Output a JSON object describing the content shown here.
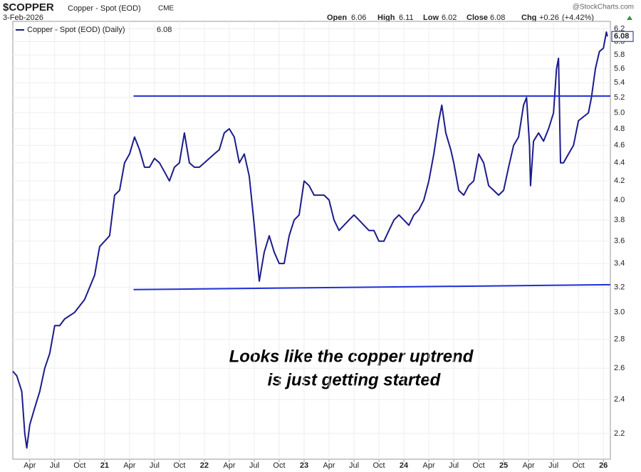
{
  "chart_data": {
    "type": "line",
    "symbol": "$COPPER",
    "title": "Copper - Spot (EOD)",
    "exchange": "CME",
    "date": "3-Feb-2026",
    "source": "@StockCharts.com",
    "quote": {
      "open_label": "Open",
      "open": 6.06,
      "high_label": "High",
      "high": 6.11,
      "low_label": "Low",
      "low": 6.02,
      "close_label": "Close",
      "close": 6.08,
      "chg_label": "Chg",
      "chg": "+0.26",
      "chg_pct": "(+4.42%)"
    },
    "annotation": [
      "Looks like the copper uptrend",
      "is just getting started"
    ],
    "log_scale": true,
    "grid": true,
    "legend": "top-left",
    "xlim": [
      2020.08,
      2026.07
    ],
    "ylim": [
      2.06,
      6.32
    ],
    "xticks": [
      {
        "value": 2020.25,
        "label": "Apr"
      },
      {
        "value": 2020.5,
        "label": "Jul"
      },
      {
        "value": 2020.75,
        "label": "Oct"
      },
      {
        "value": 2021,
        "label": "21"
      },
      {
        "value": 2021.25,
        "label": "Apr"
      },
      {
        "value": 2021.5,
        "label": "Jul"
      },
      {
        "value": 2021.75,
        "label": "Oct"
      },
      {
        "value": 2022,
        "label": "22"
      },
      {
        "value": 2022.25,
        "label": "Apr"
      },
      {
        "value": 2022.5,
        "label": "Jul"
      },
      {
        "value": 2022.75,
        "label": "Oct"
      },
      {
        "value": 2023,
        "label": "23"
      },
      {
        "value": 2023.25,
        "label": "Apr"
      },
      {
        "value": 2023.5,
        "label": "Jul"
      },
      {
        "value": 2023.75,
        "label": "Oct"
      },
      {
        "value": 2024,
        "label": "24"
      },
      {
        "value": 2024.25,
        "label": "Apr"
      },
      {
        "value": 2024.5,
        "label": "Jul"
      },
      {
        "value": 2024.75,
        "label": "Oct"
      },
      {
        "value": 2025,
        "label": "25"
      },
      {
        "value": 2025.25,
        "label": "Apr"
      },
      {
        "value": 2025.5,
        "label": "Jul"
      },
      {
        "value": 2025.75,
        "label": "Oct"
      },
      {
        "value": 2026,
        "label": "26"
      }
    ],
    "yticks": [
      2.2,
      2.4,
      2.6,
      2.8,
      {
        "value": 3,
        "label": "3.0"
      },
      3.2,
      3.4,
      3.6,
      3.8,
      {
        "value": 4,
        "label": "4.0"
      },
      4.2,
      4.4,
      4.6,
      4.8,
      {
        "value": 5,
        "label": "5.0"
      },
      5.2,
      5.4,
      5.6,
      5.8,
      {
        "value": 6,
        "label": "6.0"
      },
      6.2
    ],
    "series": [
      {
        "name": "Copper - Spot (EOD) (Daily)",
        "color": "#1c1c8c",
        "x": [
          2020.08,
          2020.12,
          2020.17,
          2020.2,
          2020.22,
          2020.25,
          2020.3,
          2020.35,
          2020.4,
          2020.45,
          2020.5,
          2020.55,
          2020.6,
          2020.7,
          2020.8,
          2020.9,
          2020.95,
          2021.0,
          2021.05,
          2021.1,
          2021.15,
          2021.2,
          2021.25,
          2021.3,
          2021.35,
          2021.4,
          2021.45,
          2021.5,
          2021.55,
          2021.6,
          2021.65,
          2021.7,
          2021.75,
          2021.8,
          2021.85,
          2021.9,
          2021.95,
          2022.0,
          2022.05,
          2022.1,
          2022.15,
          2022.2,
          2022.25,
          2022.3,
          2022.35,
          2022.4,
          2022.45,
          2022.5,
          2022.55,
          2022.6,
          2022.65,
          2022.7,
          2022.75,
          2022.8,
          2022.85,
          2022.9,
          2022.95,
          2023.0,
          2023.05,
          2023.1,
          2023.15,
          2023.2,
          2023.25,
          2023.3,
          2023.35,
          2023.4,
          2023.45,
          2023.5,
          2023.55,
          2023.6,
          2023.65,
          2023.7,
          2023.75,
          2023.8,
          2023.85,
          2023.9,
          2023.95,
          2024.0,
          2024.05,
          2024.1,
          2024.15,
          2024.2,
          2024.25,
          2024.3,
          2024.35,
          2024.38,
          2024.42,
          2024.47,
          2024.5,
          2024.55,
          2024.6,
          2024.65,
          2024.7,
          2024.75,
          2024.8,
          2024.85,
          2024.9,
          2024.95,
          2025.0,
          2025.05,
          2025.1,
          2025.15,
          2025.2,
          2025.23,
          2025.26,
          2025.27,
          2025.3,
          2025.35,
          2025.4,
          2025.45,
          2025.5,
          2025.53,
          2025.55,
          2025.57,
          2025.6,
          2025.65,
          2025.7,
          2025.75,
          2025.8,
          2025.85,
          2025.88,
          2025.92,
          2025.96,
          2026.0,
          2026.03,
          2026.04
        ],
        "values": [
          2.58,
          2.55,
          2.45,
          2.2,
          2.12,
          2.25,
          2.35,
          2.45,
          2.6,
          2.7,
          2.9,
          2.9,
          2.95,
          3.0,
          3.1,
          3.3,
          3.55,
          3.6,
          3.65,
          4.05,
          4.1,
          4.4,
          4.5,
          4.7,
          4.55,
          4.35,
          4.35,
          4.45,
          4.4,
          4.3,
          4.2,
          4.35,
          4.4,
          4.75,
          4.4,
          4.35,
          4.35,
          4.4,
          4.45,
          4.5,
          4.55,
          4.75,
          4.8,
          4.7,
          4.4,
          4.5,
          4.25,
          3.75,
          3.25,
          3.5,
          3.65,
          3.5,
          3.4,
          3.4,
          3.65,
          3.8,
          3.85,
          4.2,
          4.15,
          4.05,
          4.05,
          4.05,
          4.0,
          3.8,
          3.7,
          3.75,
          3.8,
          3.85,
          3.8,
          3.75,
          3.7,
          3.7,
          3.6,
          3.6,
          3.7,
          3.8,
          3.85,
          3.8,
          3.75,
          3.85,
          3.9,
          4.0,
          4.2,
          4.5,
          4.9,
          5.1,
          4.75,
          4.55,
          4.4,
          4.1,
          4.05,
          4.15,
          4.2,
          4.5,
          4.4,
          4.15,
          4.1,
          4.05,
          4.1,
          4.35,
          4.6,
          4.7,
          5.1,
          5.2,
          4.6,
          4.15,
          4.65,
          4.75,
          4.65,
          4.8,
          5.0,
          5.6,
          5.75,
          4.4,
          4.4,
          4.5,
          4.6,
          4.9,
          4.95,
          5.0,
          5.2,
          5.6,
          5.85,
          5.9,
          6.15,
          6.08
        ]
      }
    ],
    "trendlines": [
      {
        "color": "#1e2fd6",
        "x": [
          2021.29,
          2026.07
        ],
        "y": [
          5.22,
          5.22
        ]
      },
      {
        "color": "#1e2fd6",
        "x": [
          2021.29,
          2026.07
        ],
        "y": [
          3.18,
          3.22
        ]
      }
    ]
  }
}
